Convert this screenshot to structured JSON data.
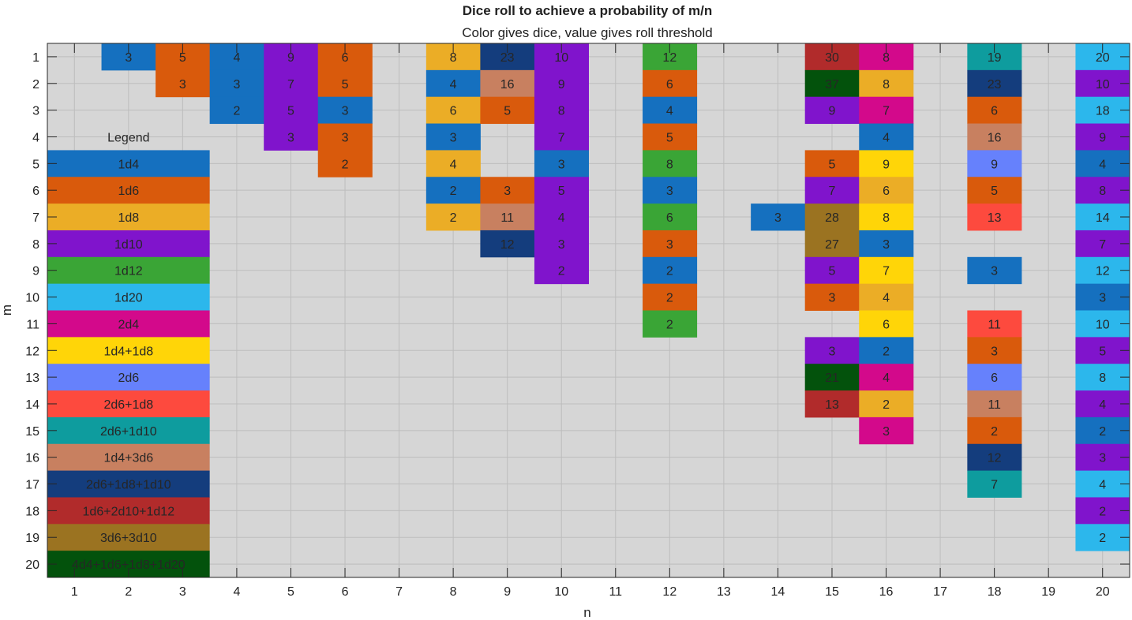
{
  "chart_data": {
    "type": "heatmap",
    "title": "Dice roll to achieve a probability of m/n",
    "subtitle": "Color gives dice, value gives roll threshold",
    "xlabel": "n",
    "ylabel": "m",
    "x_ticks": [
      1,
      2,
      3,
      4,
      5,
      6,
      7,
      8,
      9,
      10,
      11,
      12,
      13,
      14,
      15,
      16,
      17,
      18,
      19,
      20
    ],
    "y_ticks": [
      1,
      2,
      3,
      4,
      5,
      6,
      7,
      8,
      9,
      10,
      11,
      12,
      13,
      14,
      15,
      16,
      17,
      18,
      19,
      20
    ],
    "xlim": [
      0.5,
      20.5
    ],
    "ylim": [
      0.5,
      20.5
    ],
    "y_direction": "reverse",
    "grid": true,
    "background_color": "#d6d6d6",
    "legend": {
      "title": "Legend",
      "entries": [
        {
          "label": "1d4",
          "color": "#1570bf"
        },
        {
          "label": "1d6",
          "color": "#d95a0c"
        },
        {
          "label": "1d8",
          "color": "#ebad26"
        },
        {
          "label": "1d10",
          "color": "#8014cc"
        },
        {
          "label": "1d12",
          "color": "#3aa536"
        },
        {
          "label": "1d20",
          "color": "#2cb7ec"
        },
        {
          "label": "2d4",
          "color": "#d3098b"
        },
        {
          "label": "1d4+1d8",
          "color": "#ffd508"
        },
        {
          "label": "2d6",
          "color": "#6681fc"
        },
        {
          "label": "2d6+1d8",
          "color": "#fd4a3e"
        },
        {
          "label": "2d6+1d10",
          "color": "#0e9c9e"
        },
        {
          "label": "1d4+3d6",
          "color": "#c88060"
        },
        {
          "label": "2d6+1d8+1d10",
          "color": "#143d7d"
        },
        {
          "label": "1d6+2d10+1d12",
          "color": "#b12b2b"
        },
        {
          "label": "3d6+3d10",
          "color": "#9b7321"
        },
        {
          "label": "4d4+1d6+1d8+1d20",
          "color": "#03520c"
        }
      ]
    },
    "cells": [
      {
        "n": 2,
        "m": 1,
        "dice": "1d4",
        "value": 3
      },
      {
        "n": 3,
        "m": 1,
        "dice": "1d6",
        "value": 5
      },
      {
        "n": 3,
        "m": 2,
        "dice": "1d6",
        "value": 3
      },
      {
        "n": 4,
        "m": 1,
        "dice": "1d4",
        "value": 4
      },
      {
        "n": 4,
        "m": 2,
        "dice": "1d4",
        "value": 3
      },
      {
        "n": 4,
        "m": 3,
        "dice": "1d4",
        "value": 2
      },
      {
        "n": 5,
        "m": 1,
        "dice": "1d10",
        "value": 9
      },
      {
        "n": 5,
        "m": 2,
        "dice": "1d10",
        "value": 7
      },
      {
        "n": 5,
        "m": 3,
        "dice": "1d10",
        "value": 5
      },
      {
        "n": 5,
        "m": 4,
        "dice": "1d10",
        "value": 3
      },
      {
        "n": 6,
        "m": 1,
        "dice": "1d6",
        "value": 6
      },
      {
        "n": 6,
        "m": 2,
        "dice": "1d6",
        "value": 5
      },
      {
        "n": 6,
        "m": 3,
        "dice": "1d4",
        "value": 3
      },
      {
        "n": 6,
        "m": 4,
        "dice": "1d6",
        "value": 3
      },
      {
        "n": 6,
        "m": 5,
        "dice": "1d6",
        "value": 2
      },
      {
        "n": 8,
        "m": 1,
        "dice": "1d8",
        "value": 8
      },
      {
        "n": 8,
        "m": 2,
        "dice": "1d4",
        "value": 4
      },
      {
        "n": 8,
        "m": 3,
        "dice": "1d8",
        "value": 6
      },
      {
        "n": 8,
        "m": 4,
        "dice": "1d4",
        "value": 3
      },
      {
        "n": 8,
        "m": 5,
        "dice": "1d8",
        "value": 4
      },
      {
        "n": 8,
        "m": 6,
        "dice": "1d4",
        "value": 2
      },
      {
        "n": 8,
        "m": 7,
        "dice": "1d8",
        "value": 2
      },
      {
        "n": 9,
        "m": 1,
        "dice": "2d6+1d8+1d10",
        "value": 23
      },
      {
        "n": 9,
        "m": 2,
        "dice": "1d4+3d6",
        "value": 16
      },
      {
        "n": 9,
        "m": 3,
        "dice": "1d6",
        "value": 5
      },
      {
        "n": 9,
        "m": 6,
        "dice": "1d6",
        "value": 3
      },
      {
        "n": 9,
        "m": 7,
        "dice": "1d4+3d6",
        "value": 11
      },
      {
        "n": 9,
        "m": 8,
        "dice": "2d6+1d8+1d10",
        "value": 12
      },
      {
        "n": 10,
        "m": 1,
        "dice": "1d10",
        "value": 10
      },
      {
        "n": 10,
        "m": 2,
        "dice": "1d10",
        "value": 9
      },
      {
        "n": 10,
        "m": 3,
        "dice": "1d10",
        "value": 8
      },
      {
        "n": 10,
        "m": 4,
        "dice": "1d10",
        "value": 7
      },
      {
        "n": 10,
        "m": 5,
        "dice": "1d4",
        "value": 3
      },
      {
        "n": 10,
        "m": 6,
        "dice": "1d10",
        "value": 5
      },
      {
        "n": 10,
        "m": 7,
        "dice": "1d10",
        "value": 4
      },
      {
        "n": 10,
        "m": 8,
        "dice": "1d10",
        "value": 3
      },
      {
        "n": 10,
        "m": 9,
        "dice": "1d10",
        "value": 2
      },
      {
        "n": 12,
        "m": 1,
        "dice": "1d12",
        "value": 12
      },
      {
        "n": 12,
        "m": 2,
        "dice": "1d6",
        "value": 6
      },
      {
        "n": 12,
        "m": 3,
        "dice": "1d4",
        "value": 4
      },
      {
        "n": 12,
        "m": 4,
        "dice": "1d6",
        "value": 5
      },
      {
        "n": 12,
        "m": 5,
        "dice": "1d12",
        "value": 8
      },
      {
        "n": 12,
        "m": 6,
        "dice": "1d4",
        "value": 3
      },
      {
        "n": 12,
        "m": 7,
        "dice": "1d12",
        "value": 6
      },
      {
        "n": 12,
        "m": 8,
        "dice": "1d6",
        "value": 3
      },
      {
        "n": 12,
        "m": 9,
        "dice": "1d4",
        "value": 2
      },
      {
        "n": 12,
        "m": 10,
        "dice": "1d6",
        "value": 2
      },
      {
        "n": 12,
        "m": 11,
        "dice": "1d12",
        "value": 2
      },
      {
        "n": 14,
        "m": 7,
        "dice": "1d4",
        "value": 3
      },
      {
        "n": 15,
        "m": 1,
        "dice": "1d6+2d10+1d12",
        "value": 30
      },
      {
        "n": 15,
        "m": 2,
        "dice": "4d4+1d6+1d8+1d20",
        "value": 37
      },
      {
        "n": 15,
        "m": 3,
        "dice": "1d10",
        "value": 9
      },
      {
        "n": 15,
        "m": 5,
        "dice": "1d6",
        "value": 5
      },
      {
        "n": 15,
        "m": 6,
        "dice": "1d10",
        "value": 7
      },
      {
        "n": 15,
        "m": 7,
        "dice": "3d6+3d10",
        "value": 28
      },
      {
        "n": 15,
        "m": 8,
        "dice": "3d6+3d10",
        "value": 27
      },
      {
        "n": 15,
        "m": 9,
        "dice": "1d10",
        "value": 5
      },
      {
        "n": 15,
        "m": 10,
        "dice": "1d6",
        "value": 3
      },
      {
        "n": 15,
        "m": 12,
        "dice": "1d10",
        "value": 3
      },
      {
        "n": 15,
        "m": 13,
        "dice": "4d4+1d6+1d8+1d20",
        "value": 21
      },
      {
        "n": 15,
        "m": 14,
        "dice": "1d6+2d10+1d12",
        "value": 13
      },
      {
        "n": 16,
        "m": 1,
        "dice": "2d4",
        "value": 8
      },
      {
        "n": 16,
        "m": 2,
        "dice": "1d8",
        "value": 8
      },
      {
        "n": 16,
        "m": 3,
        "dice": "2d4",
        "value": 7
      },
      {
        "n": 16,
        "m": 4,
        "dice": "1d4",
        "value": 4
      },
      {
        "n": 16,
        "m": 5,
        "dice": "1d4+1d8",
        "value": 9
      },
      {
        "n": 16,
        "m": 6,
        "dice": "1d8",
        "value": 6
      },
      {
        "n": 16,
        "m": 7,
        "dice": "1d4+1d8",
        "value": 8
      },
      {
        "n": 16,
        "m": 8,
        "dice": "1d4",
        "value": 3
      },
      {
        "n": 16,
        "m": 9,
        "dice": "1d4+1d8",
        "value": 7
      },
      {
        "n": 16,
        "m": 10,
        "dice": "1d8",
        "value": 4
      },
      {
        "n": 16,
        "m": 11,
        "dice": "1d4+1d8",
        "value": 6
      },
      {
        "n": 16,
        "m": 12,
        "dice": "1d4",
        "value": 2
      },
      {
        "n": 16,
        "m": 13,
        "dice": "2d4",
        "value": 4
      },
      {
        "n": 16,
        "m": 14,
        "dice": "1d8",
        "value": 2
      },
      {
        "n": 16,
        "m": 15,
        "dice": "2d4",
        "value": 3
      },
      {
        "n": 18,
        "m": 1,
        "dice": "2d6+1d10",
        "value": 19
      },
      {
        "n": 18,
        "m": 2,
        "dice": "2d6+1d8+1d10",
        "value": 23
      },
      {
        "n": 18,
        "m": 3,
        "dice": "1d6",
        "value": 6
      },
      {
        "n": 18,
        "m": 4,
        "dice": "1d4+3d6",
        "value": 16
      },
      {
        "n": 18,
        "m": 5,
        "dice": "2d6",
        "value": 9
      },
      {
        "n": 18,
        "m": 6,
        "dice": "1d6",
        "value": 5
      },
      {
        "n": 18,
        "m": 7,
        "dice": "2d6+1d8",
        "value": 13
      },
      {
        "n": 18,
        "m": 9,
        "dice": "1d4",
        "value": 3
      },
      {
        "n": 18,
        "m": 11,
        "dice": "2d6+1d8",
        "value": 11
      },
      {
        "n": 18,
        "m": 12,
        "dice": "1d6",
        "value": 3
      },
      {
        "n": 18,
        "m": 13,
        "dice": "2d6",
        "value": 6
      },
      {
        "n": 18,
        "m": 14,
        "dice": "1d4+3d6",
        "value": 11
      },
      {
        "n": 18,
        "m": 15,
        "dice": "1d6",
        "value": 2
      },
      {
        "n": 18,
        "m": 16,
        "dice": "2d6+1d8+1d10",
        "value": 12
      },
      {
        "n": 18,
        "m": 17,
        "dice": "2d6+1d10",
        "value": 7
      },
      {
        "n": 20,
        "m": 1,
        "dice": "1d20",
        "value": 20
      },
      {
        "n": 20,
        "m": 2,
        "dice": "1d10",
        "value": 10
      },
      {
        "n": 20,
        "m": 3,
        "dice": "1d20",
        "value": 18
      },
      {
        "n": 20,
        "m": 4,
        "dice": "1d10",
        "value": 9
      },
      {
        "n": 20,
        "m": 5,
        "dice": "1d4",
        "value": 4
      },
      {
        "n": 20,
        "m": 6,
        "dice": "1d10",
        "value": 8
      },
      {
        "n": 20,
        "m": 7,
        "dice": "1d20",
        "value": 14
      },
      {
        "n": 20,
        "m": 8,
        "dice": "1d10",
        "value": 7
      },
      {
        "n": 20,
        "m": 9,
        "dice": "1d20",
        "value": 12
      },
      {
        "n": 20,
        "m": 10,
        "dice": "1d4",
        "value": 3
      },
      {
        "n": 20,
        "m": 11,
        "dice": "1d20",
        "value": 10
      },
      {
        "n": 20,
        "m": 12,
        "dice": "1d10",
        "value": 5
      },
      {
        "n": 20,
        "m": 13,
        "dice": "1d20",
        "value": 8
      },
      {
        "n": 20,
        "m": 14,
        "dice": "1d10",
        "value": 4
      },
      {
        "n": 20,
        "m": 15,
        "dice": "1d4",
        "value": 2
      },
      {
        "n": 20,
        "m": 16,
        "dice": "1d10",
        "value": 3
      },
      {
        "n": 20,
        "m": 17,
        "dice": "1d20",
        "value": 4
      },
      {
        "n": 20,
        "m": 18,
        "dice": "1d10",
        "value": 2
      },
      {
        "n": 20,
        "m": 19,
        "dice": "1d20",
        "value": 2
      }
    ]
  }
}
